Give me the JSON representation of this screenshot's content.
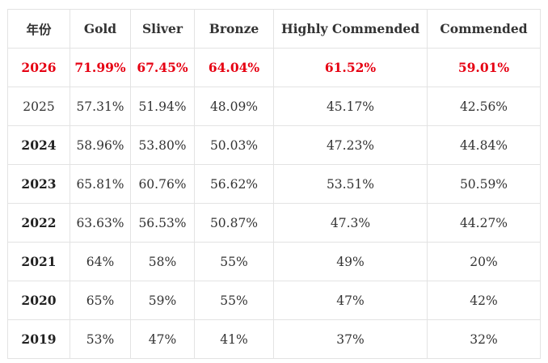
{
  "table": {
    "headers": [
      "年份",
      "Gold",
      "Sliver",
      "Bronze",
      "Highly Commended",
      "Commended"
    ],
    "rows": [
      {
        "style": "highlight",
        "cells": [
          "2026",
          "71.99%",
          "67.45%",
          "64.04%",
          "61.52%",
          "59.01%"
        ]
      },
      {
        "style": "plain",
        "cells": [
          "2025",
          "57.31%",
          "51.94%",
          "48.09%",
          "45.17%",
          "42.56%"
        ]
      },
      {
        "style": "bold-year",
        "cells": [
          "2024",
          "58.96%",
          "53.80%",
          "50.03%",
          "47.23%",
          "44.84%"
        ]
      },
      {
        "style": "bold-year",
        "cells": [
          "2023",
          "65.81%",
          "60.76%",
          "56.62%",
          "53.51%",
          "50.59%"
        ]
      },
      {
        "style": "bold-year",
        "cells": [
          "2022",
          "63.63%",
          "56.53%",
          "50.87%",
          "47.3%",
          "44.27%"
        ]
      },
      {
        "style": "bold-year",
        "cells": [
          "2021",
          "64%",
          "58%",
          "55%",
          "49%",
          "20%"
        ]
      },
      {
        "style": "bold-year",
        "cells": [
          "2020",
          "65%",
          "59%",
          "55%",
          "47%",
          "42%"
        ]
      },
      {
        "style": "bold-year",
        "cells": [
          "2019",
          "53%",
          "47%",
          "41%",
          "37%",
          "32%"
        ]
      }
    ],
    "highlight_color": "#e60012",
    "border_color": "#e3e3e3"
  }
}
